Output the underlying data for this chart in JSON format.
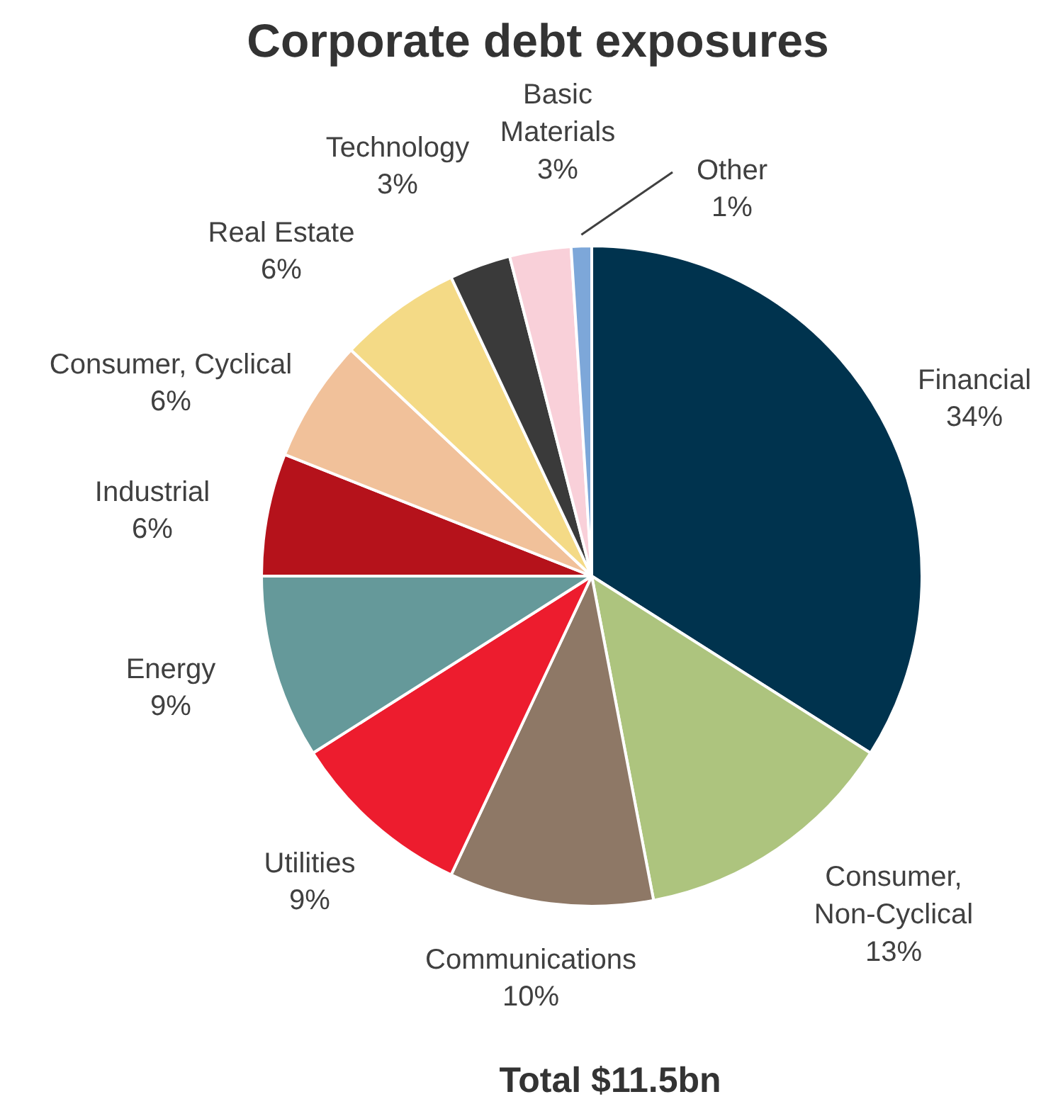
{
  "chart_data": {
    "type": "pie",
    "title": "Corporate debt exposures",
    "categories": [
      "Financial",
      "Consumer,\nNon-Cyclical",
      "Communications",
      "Utilities",
      "Energy",
      "Industrial",
      "Consumer, Cyclical",
      "Real Estate",
      "Technology",
      "Basic\nMaterials",
      "Other"
    ],
    "values": [
      34,
      13,
      10,
      9,
      9,
      6,
      6,
      6,
      3,
      3,
      1
    ],
    "value_labels": [
      "34%",
      "13%",
      "10%",
      "9%",
      "9%",
      "6%",
      "6%",
      "6%",
      "3%",
      "3%",
      "1%"
    ],
    "colors": [
      "#00334e",
      "#adc47e",
      "#8e7866",
      "#ed1c2e",
      "#65999a",
      "#b5121b",
      "#f1c19a",
      "#f4da86",
      "#3a3a3a",
      "#f9d0d9",
      "#7da7d9"
    ],
    "annotations": [
      "Total $11.5bn"
    ]
  }
}
